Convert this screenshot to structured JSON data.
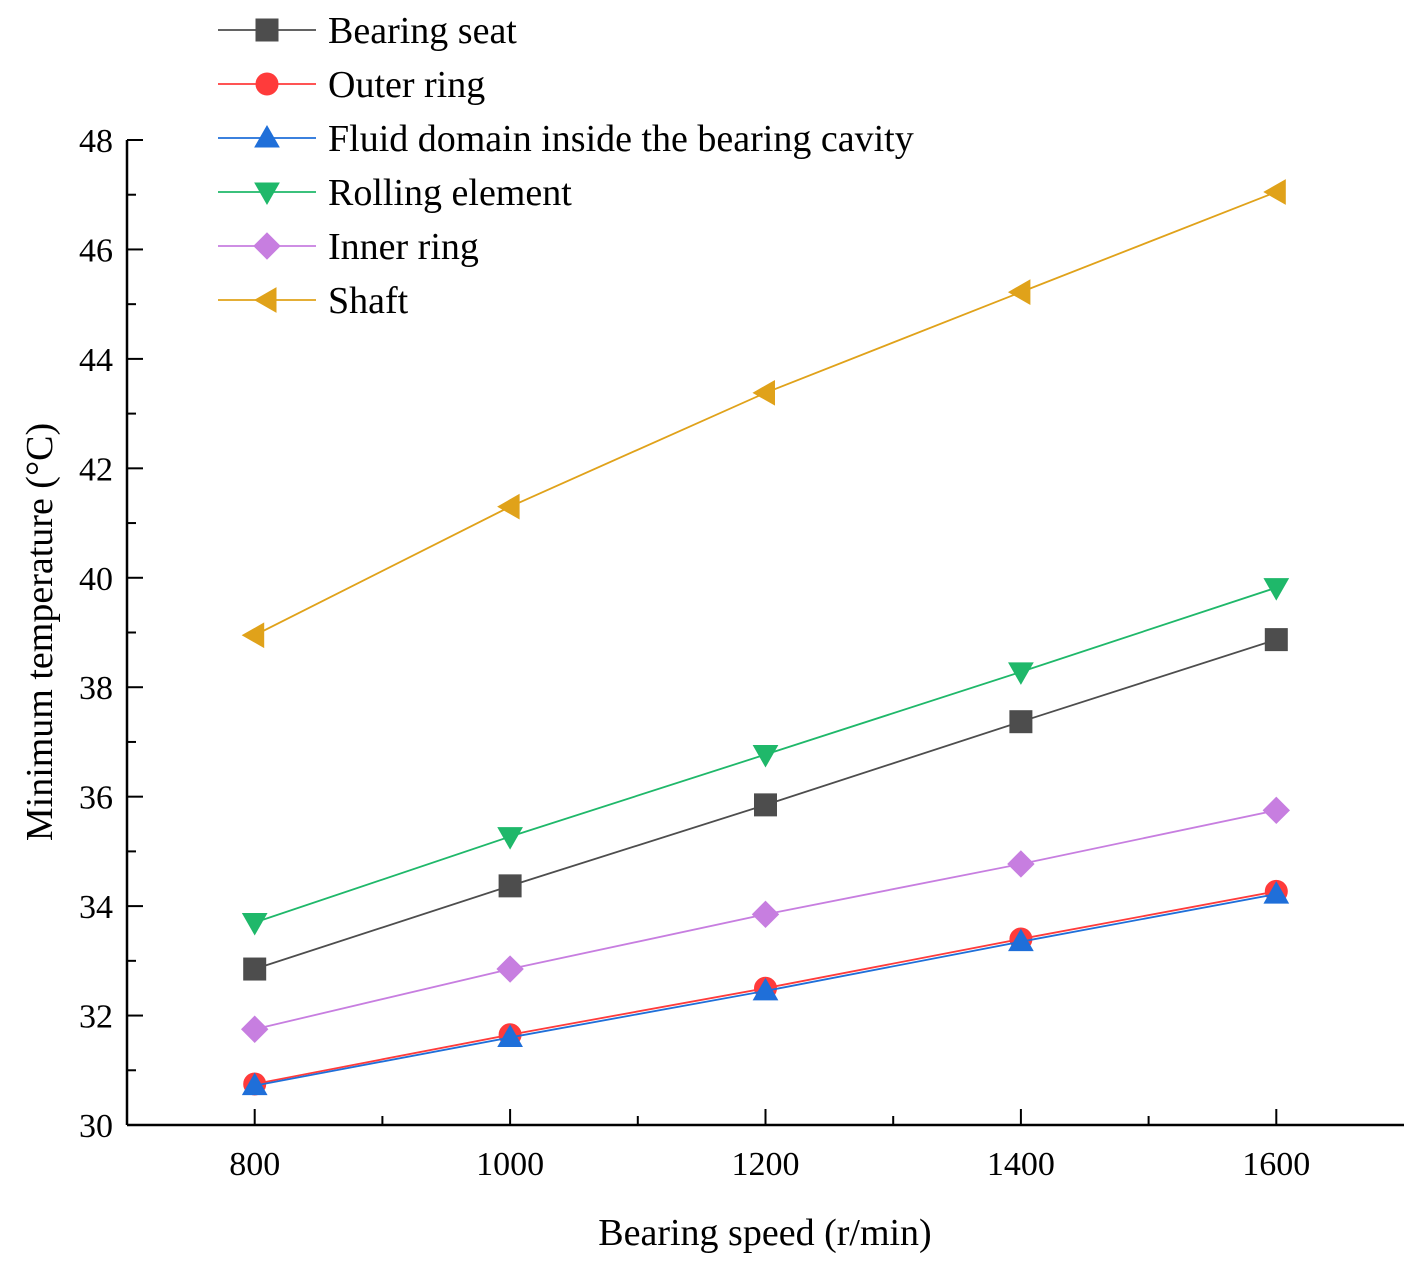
{
  "chart_data": {
    "type": "line",
    "title": "",
    "xlabel": "Bearing speed (r/min)",
    "ylabel": "Minimum temperature (°C)",
    "x": [
      800,
      1000,
      1200,
      1400,
      1600
    ],
    "xlim": [
      700,
      1700
    ],
    "ylim": [
      30,
      48
    ],
    "xticks": [
      800,
      1000,
      1200,
      1400,
      1600
    ],
    "yticks": [
      30,
      32,
      34,
      36,
      38,
      40,
      42,
      44,
      46,
      48
    ],
    "grid": false,
    "legend_position": "top-left",
    "series": [
      {
        "name": "Bearing seat",
        "color": "#4d4d4d",
        "marker": "square",
        "values": [
          32.85,
          34.37,
          35.85,
          37.37,
          38.87
        ]
      },
      {
        "name": "Outer ring",
        "color": "#ff3b3b",
        "marker": "circle",
        "values": [
          30.75,
          31.65,
          32.5,
          33.4,
          34.27
        ]
      },
      {
        "name": "Fluid domain inside the bearing cavity",
        "color": "#1f6fd9",
        "marker": "triangle-up",
        "values": [
          30.72,
          31.6,
          32.45,
          33.35,
          34.22
        ]
      },
      {
        "name": "Rolling element",
        "color": "#1fb86a",
        "marker": "triangle-down",
        "values": [
          33.7,
          35.27,
          36.77,
          38.28,
          39.82
        ]
      },
      {
        "name": "Inner ring",
        "color": "#c77ee0",
        "marker": "diamond",
        "values": [
          31.75,
          32.85,
          33.85,
          34.77,
          35.75
        ]
      },
      {
        "name": "Shaft",
        "color": "#e0a21a",
        "marker": "triangle-left",
        "values": [
          38.95,
          41.3,
          43.38,
          45.22,
          47.05
        ]
      }
    ]
  }
}
